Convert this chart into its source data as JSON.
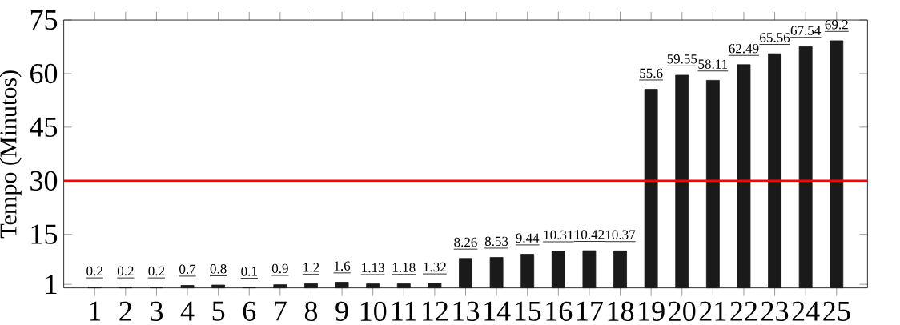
{
  "chart_data": {
    "type": "bar",
    "ylabel": "Tempo (Minutos)",
    "categories": [
      "1",
      "2",
      "3",
      "4",
      "5",
      "6",
      "7",
      "8",
      "9",
      "10",
      "11",
      "12",
      "13",
      "14",
      "15",
      "16",
      "17",
      "18",
      "19",
      "20",
      "21",
      "22",
      "23",
      "24",
      "25"
    ],
    "values": [
      0.2,
      0.2,
      0.2,
      0.7,
      0.8,
      0.1,
      0.9,
      1.2,
      1.6,
      1.13,
      1.18,
      1.32,
      8.26,
      8.53,
      9.44,
      10.31,
      10.42,
      10.37,
      55.6,
      59.55,
      58.11,
      62.49,
      65.56,
      67.54,
      69.2
    ],
    "color": "#1a1a1a",
    "ylim": [
      0,
      75
    ],
    "yticks": [
      1,
      15,
      30,
      45,
      60,
      75
    ],
    "data_labels": true,
    "ref_lines": [
      {
        "axis": "y",
        "value": 30,
        "color": "#ff0000"
      }
    ]
  }
}
